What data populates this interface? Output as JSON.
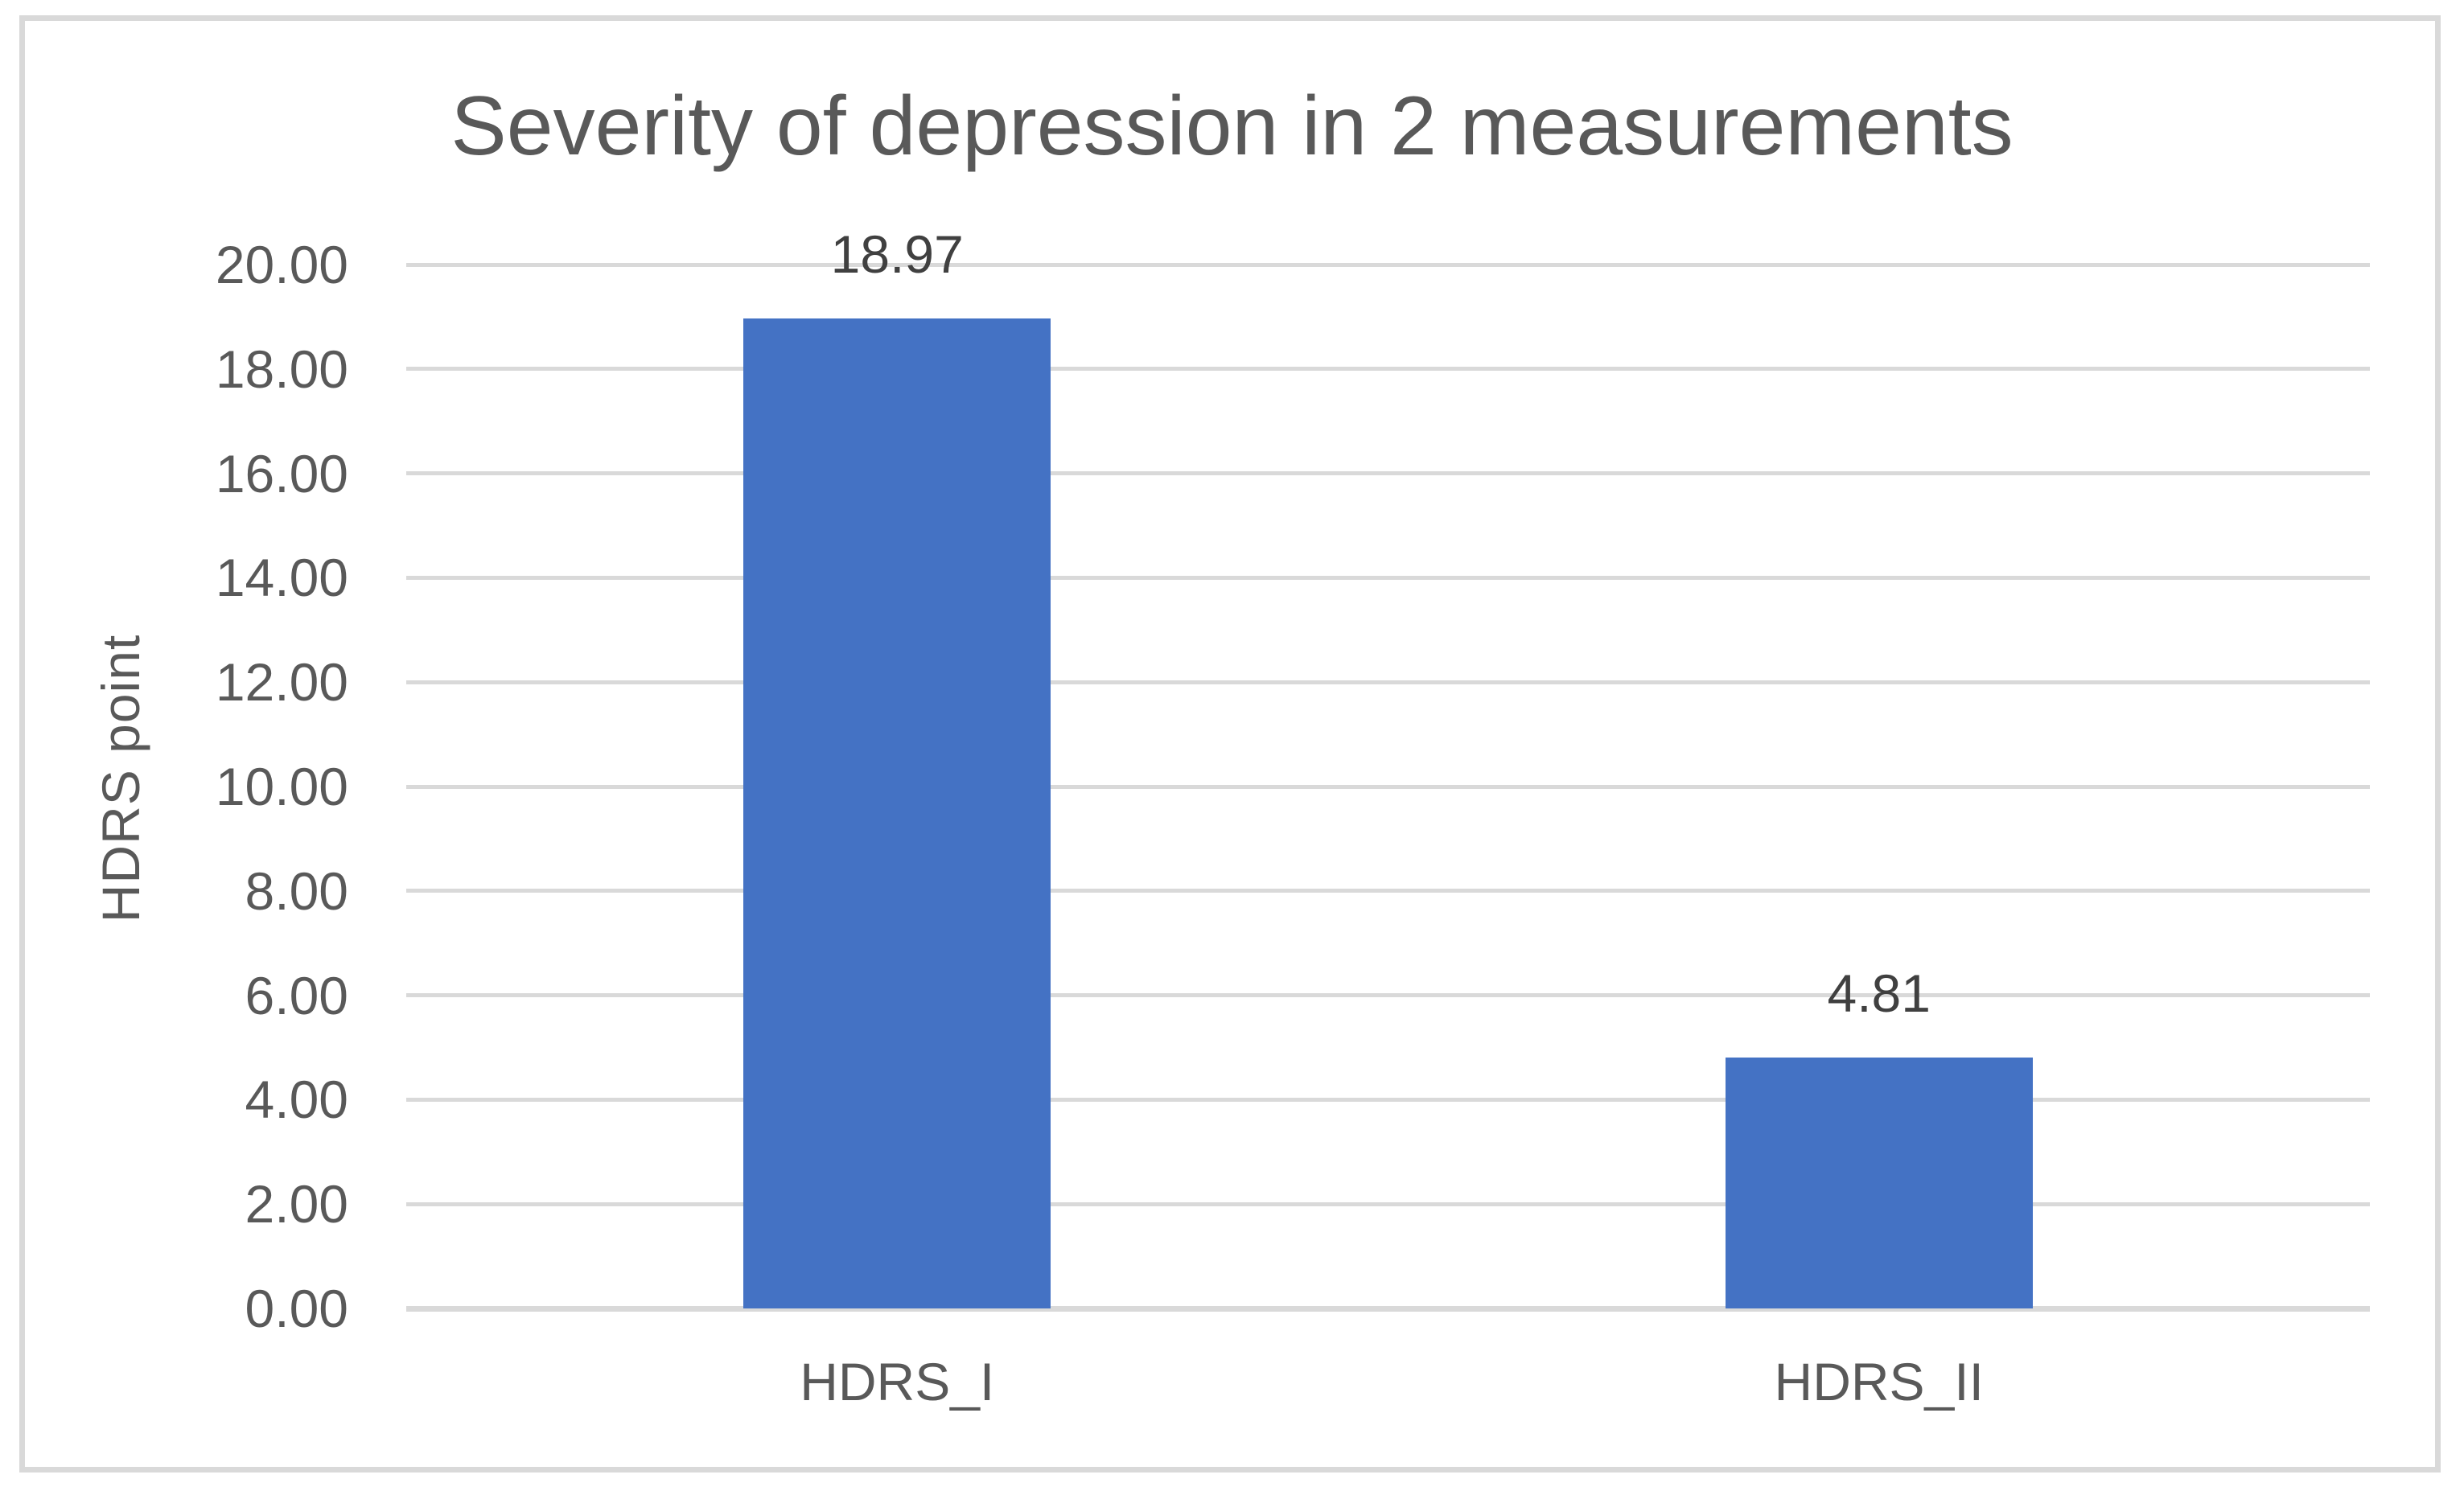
{
  "window": {
    "background": "#FFFFFF",
    "border_color": "#D9D9D9"
  },
  "chart_data": {
    "type": "bar",
    "title": "Severity of depression in 2 measurements",
    "xlabel": "",
    "ylabel": "HDRS point",
    "categories": [
      "HDRS_I",
      "HDRS_II"
    ],
    "values": [
      18.97,
      4.81
    ],
    "data_labels": [
      "18.97",
      "4.81"
    ],
    "ylim": [
      0,
      20
    ],
    "ytick_interval": 2,
    "ytick_labels": [
      "20.00",
      "18.00",
      "16.00",
      "14.00",
      "12.00",
      "10.00",
      "8.00",
      "6.00",
      "4.00",
      "2.00",
      "0.00"
    ],
    "grid": true,
    "legend_position": "none",
    "bar_color": "#4472C4",
    "gridline_color": "#D9D9D9",
    "zero_line_color": "#D9D9D9",
    "title_color": "#595959",
    "axis_label_color": "#595959",
    "tick_label_color": "#595959",
    "data_label_color": "#404040"
  }
}
